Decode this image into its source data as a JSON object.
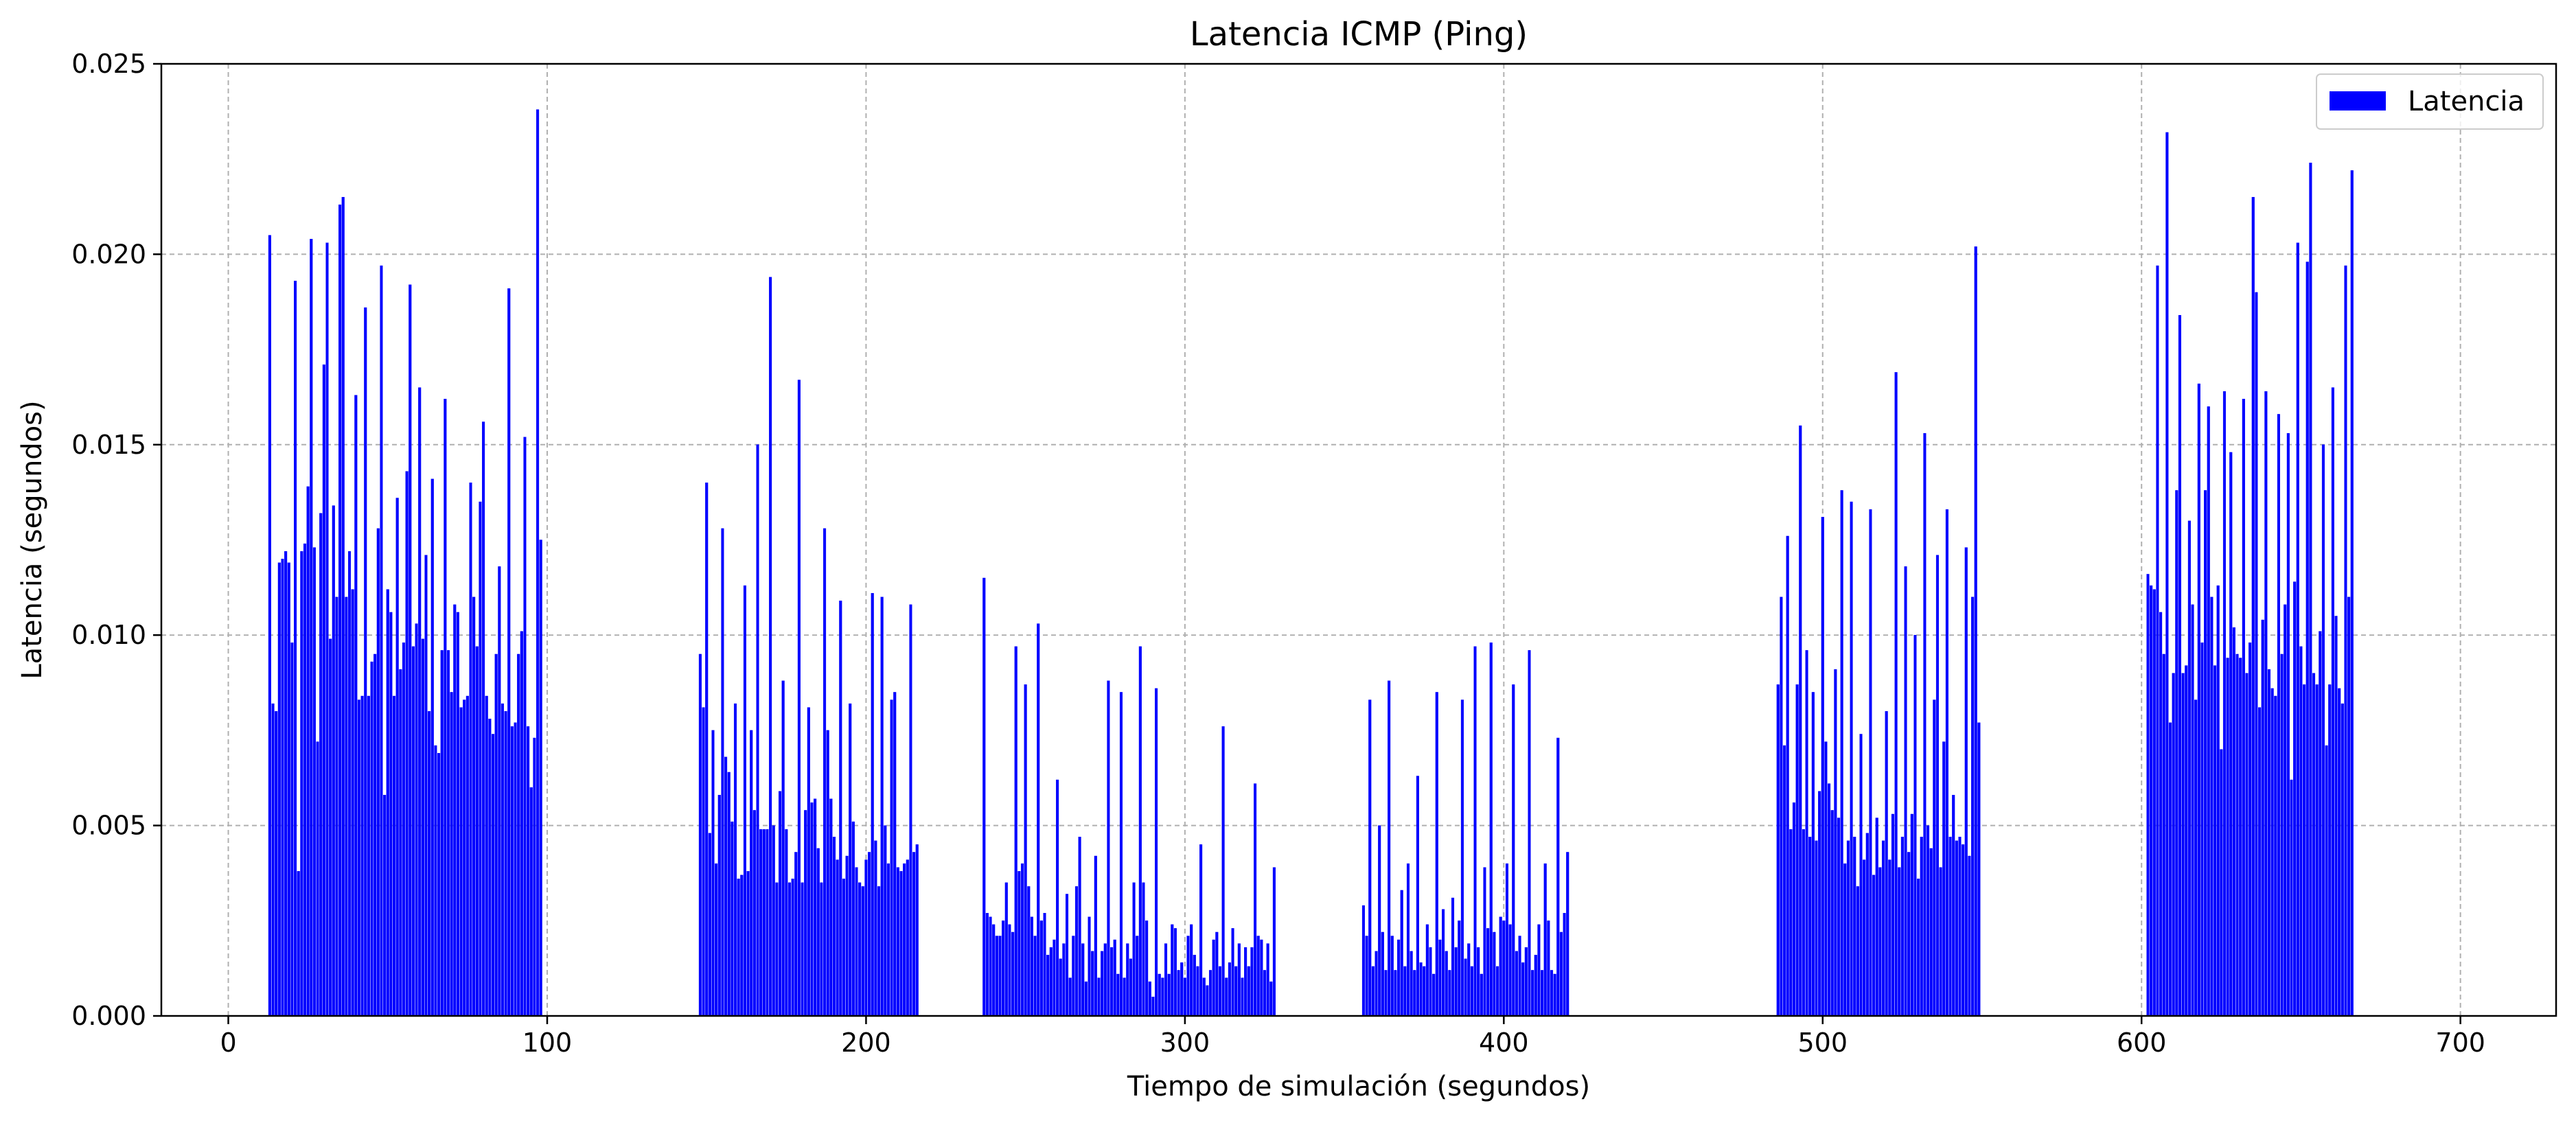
{
  "chart_data": {
    "type": "bar",
    "title": "Latencia ICMP (Ping)",
    "xlabel": "Tiempo de simulación (segundos)",
    "ylabel": "Latencia (segundos)",
    "xlim": [
      -21,
      730
    ],
    "ylim": [
      0,
      0.025
    ],
    "xticks": [
      0,
      100,
      200,
      300,
      400,
      500,
      600,
      700
    ],
    "yticks": [
      0.0,
      0.005,
      0.01,
      0.015,
      0.02,
      0.025
    ],
    "xtick_labels": [
      "0",
      "100",
      "200",
      "300",
      "400",
      "500",
      "600",
      "700"
    ],
    "ytick_labels": [
      "0.000",
      "0.005",
      "0.010",
      "0.015",
      "0.020",
      "0.025"
    ],
    "grid": true,
    "legend_position": "top-right",
    "bar_color": "#0000ff",
    "series": [
      {
        "name": "Latencia",
        "segments": [
          {
            "x_start": 13,
            "step": 1,
            "values": [
              0.0205,
              0.0082,
              0.008,
              0.0119,
              0.012,
              0.0122,
              0.0119,
              0.0098,
              0.0193,
              0.0038,
              0.0122,
              0.0124,
              0.0139,
              0.0204,
              0.0123,
              0.0072,
              0.0132,
              0.0171,
              0.0203,
              0.0099,
              0.0134,
              0.011,
              0.0213,
              0.0215,
              0.011,
              0.0122,
              0.0112,
              0.0163,
              0.0083,
              0.0084,
              0.0186,
              0.0084,
              0.0093,
              0.0095,
              0.0128,
              0.0197,
              0.0058,
              0.0112,
              0.0106,
              0.0084,
              0.0136,
              0.0091,
              0.0098,
              0.0143,
              0.0192,
              0.0097,
              0.0103,
              0.0165,
              0.0099,
              0.0121,
              0.008,
              0.0141,
              0.0071,
              0.0069,
              0.0096,
              0.0162,
              0.0096,
              0.0085,
              0.0108,
              0.0106,
              0.0081,
              0.0083,
              0.0084,
              0.014,
              0.011,
              0.0097,
              0.0135,
              0.0156,
              0.0084,
              0.0078,
              0.0074,
              0.0095,
              0.0118,
              0.0082,
              0.008,
              0.0191,
              0.0076,
              0.0077,
              0.0095,
              0.0101,
              0.0152,
              0.0076,
              0.006,
              0.0073,
              0.0238,
              0.0125
            ]
          },
          {
            "x_start": 148,
            "step": 1,
            "values": [
              0.0095,
              0.0081,
              0.014,
              0.0048,
              0.0075,
              0.004,
              0.0058,
              0.0128,
              0.0068,
              0.0064,
              0.0051,
              0.0082,
              0.0036,
              0.0037,
              0.0113,
              0.0038,
              0.0075,
              0.0054,
              0.015,
              0.0049,
              0.0049,
              0.0049,
              0.0194,
              0.005,
              0.0035,
              0.0059,
              0.0088,
              0.0049,
              0.0035,
              0.0036,
              0.0043,
              0.0167,
              0.0035,
              0.0054,
              0.0081,
              0.0056,
              0.0057,
              0.0044,
              0.0035,
              0.0128,
              0.0075,
              0.0057,
              0.0047,
              0.0041,
              0.0109,
              0.0036,
              0.0042,
              0.0082,
              0.0051,
              0.0039,
              0.0035,
              0.0034,
              0.0041,
              0.0043,
              0.0111,
              0.0046,
              0.0034,
              0.011,
              0.005,
              0.004,
              0.0083,
              0.0085,
              0.0039,
              0.0038,
              0.004,
              0.0041,
              0.0108,
              0.0043,
              0.0045
            ]
          },
          {
            "x_start": 237,
            "step": 1,
            "values": [
              0.0115,
              0.0027,
              0.0026,
              0.0024,
              0.0021,
              0.0021,
              0.0025,
              0.0035,
              0.0024,
              0.0022,
              0.0097,
              0.0038,
              0.004,
              0.0087,
              0.0034,
              0.0026,
              0.0021,
              0.0103,
              0.0025,
              0.0027,
              0.0016,
              0.0018,
              0.002,
              0.0062,
              0.0015,
              0.0019,
              0.0032,
              0.001,
              0.0021,
              0.0034,
              0.0047,
              0.0019,
              0.0009,
              0.0026,
              0.0017,
              0.0042,
              0.001,
              0.0017,
              0.0019,
              0.0088,
              0.0018,
              0.002,
              0.0011,
              0.0085,
              0.001,
              0.0019,
              0.0015,
              0.0035,
              0.0021,
              0.0097,
              0.0035,
              0.0025,
              0.0009,
              0.0005,
              0.0086,
              0.0011,
              0.001,
              0.0019,
              0.0011,
              0.0024,
              0.0023,
              0.0012,
              0.0014,
              0.001,
              0.0021,
              0.0024,
              0.0016,
              0.0013,
              0.0045,
              0.001,
              0.0008,
              0.0012,
              0.002,
              0.0022,
              0.0013,
              0.0076,
              0.001,
              0.0014,
              0.0023,
              0.0013,
              0.0019,
              0.001,
              0.0018,
              0.0013,
              0.0018,
              0.0061,
              0.0021,
              0.002,
              0.0012,
              0.0019,
              0.0009,
              0.0039
            ]
          },
          {
            "x_start": 356,
            "step": 1,
            "values": [
              0.0029,
              0.0021,
              0.0083,
              0.0013,
              0.0017,
              0.005,
              0.0022,
              0.0012,
              0.0088,
              0.0021,
              0.0012,
              0.002,
              0.0033,
              0.0013,
              0.004,
              0.0017,
              0.0012,
              0.0063,
              0.0014,
              0.0013,
              0.0024,
              0.0018,
              0.0011,
              0.0085,
              0.002,
              0.0028,
              0.0017,
              0.0012,
              0.0031,
              0.0018,
              0.0025,
              0.0083,
              0.0015,
              0.0019,
              0.0013,
              0.0097,
              0.0018,
              0.0011,
              0.0039,
              0.0023,
              0.0098,
              0.0022,
              0.0013,
              0.0026,
              0.0025,
              0.004,
              0.0024,
              0.0087,
              0.0017,
              0.0021,
              0.0014,
              0.0018,
              0.0096,
              0.0012,
              0.0016,
              0.0024,
              0.0012,
              0.004,
              0.0025,
              0.0012,
              0.0011,
              0.0073,
              0.0022,
              0.0027,
              0.0043
            ]
          },
          {
            "x_start": 486,
            "step": 1,
            "values": [
              0.0087,
              0.011,
              0.0071,
              0.0126,
              0.0049,
              0.0056,
              0.0087,
              0.0155,
              0.0049,
              0.0096,
              0.0047,
              0.0085,
              0.0046,
              0.0059,
              0.0131,
              0.0072,
              0.0061,
              0.0054,
              0.0091,
              0.0052,
              0.0138,
              0.004,
              0.0046,
              0.0135,
              0.0047,
              0.0034,
              0.0074,
              0.0041,
              0.0048,
              0.0133,
              0.0037,
              0.0052,
              0.0039,
              0.0046,
              0.008,
              0.0041,
              0.0053,
              0.0169,
              0.0039,
              0.0047,
              0.0118,
              0.0043,
              0.0053,
              0.01,
              0.0036,
              0.0047,
              0.0153,
              0.005,
              0.0044,
              0.0083,
              0.0121,
              0.0039,
              0.0072,
              0.0133,
              0.0047,
              0.0058,
              0.0046,
              0.0047,
              0.0045,
              0.0123,
              0.0042,
              0.011,
              0.0202,
              0.0077
            ]
          },
          {
            "x_start": 602,
            "step": 1,
            "values": [
              0.0116,
              0.0113,
              0.0112,
              0.0197,
              0.0106,
              0.0095,
              0.0232,
              0.0077,
              0.009,
              0.0138,
              0.0184,
              0.009,
              0.0092,
              0.013,
              0.0108,
              0.0083,
              0.0166,
              0.0098,
              0.0138,
              0.016,
              0.011,
              0.0092,
              0.0113,
              0.007,
              0.0164,
              0.0094,
              0.0148,
              0.0102,
              0.0095,
              0.0094,
              0.0162,
              0.009,
              0.0098,
              0.0215,
              0.019,
              0.0081,
              0.0104,
              0.0164,
              0.0091,
              0.0086,
              0.0084,
              0.0158,
              0.0095,
              0.0108,
              0.0153,
              0.0062,
              0.0114,
              0.0203,
              0.0097,
              0.0087,
              0.0198,
              0.0224,
              0.009,
              0.0087,
              0.0101,
              0.015,
              0.0071,
              0.0087,
              0.0165,
              0.0105,
              0.0086,
              0.0082,
              0.0197,
              0.011,
              0.0222
            ]
          }
        ]
      }
    ]
  }
}
